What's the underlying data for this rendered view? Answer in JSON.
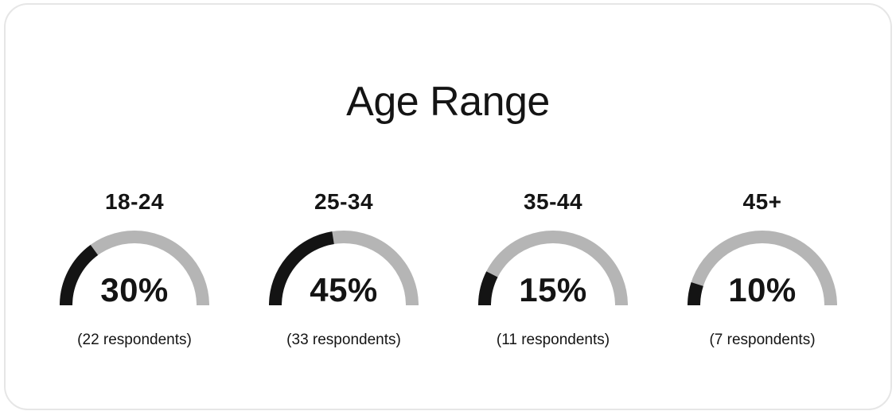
{
  "chart_data": {
    "type": "gauge",
    "title": "Age Range",
    "max": 100,
    "unit": "%",
    "colors": {
      "fill": "#141414",
      "track": "#b5b5b5"
    },
    "gauges": [
      {
        "category": "18-24",
        "value": 30,
        "value_label": "30%",
        "count_label": "(22 respondents)"
      },
      {
        "category": "25-34",
        "value": 45,
        "value_label": "45%",
        "count_label": "(33 respondents)"
      },
      {
        "category": "35-44",
        "value": 15,
        "value_label": "15%",
        "count_label": "(11 respondents)"
      },
      {
        "category": "45+",
        "value": 10,
        "value_label": "10%",
        "count_label": "(7 respondents)"
      }
    ]
  }
}
